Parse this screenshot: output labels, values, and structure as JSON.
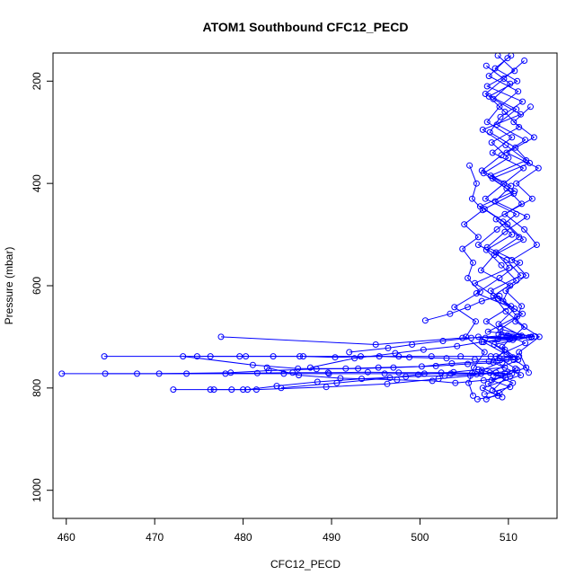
{
  "chart_data": {
    "type": "scatter",
    "title": "ATOM1 Southbound CFC12_PECD",
    "xlabel": "CFC12_PECD",
    "ylabel": "Pressure (mbar)",
    "xlim": [
      458.5,
      515.5
    ],
    "ylim": [
      1055,
      145
    ],
    "y_reversed": true,
    "x_ticks": [
      460,
      470,
      480,
      490,
      500,
      510
    ],
    "y_ticks": [
      200,
      400,
      600,
      800,
      1000
    ],
    "color": "#0000ff",
    "marker": "open-circle",
    "grid": false,
    "series": [
      {
        "points": [
          [
            510.3,
            150
          ],
          [
            508.5,
            175
          ],
          [
            511.0,
            200
          ],
          [
            507.8,
            230
          ],
          [
            509.6,
            260
          ],
          [
            511.2,
            290
          ],
          [
            508.1,
            320
          ],
          [
            510.0,
            350
          ],
          [
            507.2,
            380
          ],
          [
            509.8,
            410
          ],
          [
            511.5,
            440
          ],
          [
            508.6,
            470
          ],
          [
            510.4,
            500
          ],
          [
            507.5,
            530
          ],
          [
            509.2,
            560
          ],
          [
            510.9,
            590
          ],
          [
            508.3,
            620
          ],
          [
            509.7,
            650
          ],
          [
            511.8,
            680
          ],
          [
            510.6,
            700
          ],
          [
            508.9,
            695
          ],
          [
            512.3,
            701
          ],
          [
            507.4,
            702
          ],
          [
            510.1,
            705
          ],
          [
            509.3,
            720
          ],
          [
            511.1,
            745
          ],
          [
            507.9,
            770
          ],
          [
            510.5,
            790
          ],
          [
            509.0,
            810
          ],
          [
            507.5,
            822
          ]
        ]
      },
      {
        "points": [
          [
            508.8,
            150
          ],
          [
            510.7,
            180
          ],
          [
            507.6,
            210
          ],
          [
            511.6,
            240
          ],
          [
            509.1,
            270
          ],
          [
            507.9,
            300
          ],
          [
            510.8,
            330
          ],
          [
            512.4,
            360
          ],
          [
            508.2,
            390
          ],
          [
            510.6,
            420
          ],
          [
            507.3,
            450
          ],
          [
            509.9,
            480
          ],
          [
            511.7,
            510
          ],
          [
            508.4,
            540
          ],
          [
            506.9,
            570
          ],
          [
            510.2,
            600
          ],
          [
            509.4,
            630
          ],
          [
            511.0,
            660
          ],
          [
            507.7,
            690
          ],
          [
            513.0,
            699
          ],
          [
            510.7,
            702
          ],
          [
            506.6,
            700
          ],
          [
            509.6,
            725
          ],
          [
            508.3,
            750
          ],
          [
            511.4,
            775
          ],
          [
            507.1,
            800
          ],
          [
            508.8,
            815
          ],
          [
            506.5,
            822
          ]
        ]
      },
      {
        "points": [
          [
            511.8,
            160
          ],
          [
            509.5,
            195
          ],
          [
            507.4,
            225
          ],
          [
            510.9,
            255
          ],
          [
            508.7,
            285
          ],
          [
            511.9,
            315
          ],
          [
            509.2,
            345
          ],
          [
            507.0,
            375
          ],
          [
            510.3,
            405
          ],
          [
            508.5,
            435
          ],
          [
            512.1,
            465
          ],
          [
            509.6,
            495
          ],
          [
            507.6,
            525
          ],
          [
            511.3,
            555
          ],
          [
            509.0,
            585
          ],
          [
            506.4,
            615
          ],
          [
            510.7,
            645
          ],
          [
            508.9,
            675
          ],
          [
            511.5,
            698
          ],
          [
            507.2,
            710
          ],
          [
            509.8,
            735
          ],
          [
            512.0,
            760
          ],
          [
            508.1,
            785
          ],
          [
            510.2,
            798
          ],
          [
            507.3,
            812
          ]
        ]
      },
      {
        "points": [
          [
            507.5,
            170
          ],
          [
            510.2,
            205
          ],
          [
            508.3,
            235
          ],
          [
            511.4,
            265
          ],
          [
            507.1,
            295
          ],
          [
            509.7,
            325
          ],
          [
            512.0,
            355
          ],
          [
            508.0,
            385
          ],
          [
            510.7,
            415
          ],
          [
            506.8,
            445
          ],
          [
            509.4,
            475
          ],
          [
            511.2,
            505
          ],
          [
            508.6,
            535
          ],
          [
            510.1,
            565
          ],
          [
            506.2,
            595
          ],
          [
            508.8,
            625
          ],
          [
            511.6,
            655
          ],
          [
            509.1,
            685
          ],
          [
            512.6,
            700
          ],
          [
            508.4,
            715
          ],
          [
            510.5,
            740
          ],
          [
            507.0,
            765
          ],
          [
            509.7,
            780
          ],
          [
            508.2,
            805
          ]
        ]
      },
      {
        "points": [
          [
            509.9,
            155
          ],
          [
            507.8,
            190
          ],
          [
            511.1,
            220
          ],
          [
            509.0,
            250
          ],
          [
            507.6,
            280
          ],
          [
            510.4,
            310
          ],
          [
            508.2,
            340
          ],
          [
            511.7,
            370
          ],
          [
            509.5,
            400
          ],
          [
            507.4,
            430
          ],
          [
            510.9,
            460
          ],
          [
            508.7,
            490
          ],
          [
            506.6,
            520
          ],
          [
            509.8,
            550
          ],
          [
            511.4,
            580
          ],
          [
            508.0,
            610
          ],
          [
            510.3,
            640
          ],
          [
            507.5,
            670
          ],
          [
            509.9,
            697
          ],
          [
            511.9,
            712
          ],
          [
            508.6,
            738
          ],
          [
            510.8,
            762
          ],
          [
            507.7,
            792
          ],
          [
            509.3,
            818
          ]
        ]
      },
      {
        "points": [
          [
            512.5,
            250
          ],
          [
            510.6,
            280
          ],
          [
            512.9,
            310
          ],
          [
            509.8,
            340
          ],
          [
            513.4,
            370
          ],
          [
            510.9,
            400
          ],
          [
            512.7,
            430
          ],
          [
            509.6,
            460
          ],
          [
            511.8,
            490
          ],
          [
            513.2,
            520
          ],
          [
            510.4,
            550
          ],
          [
            512.0,
            580
          ],
          [
            509.7,
            610
          ],
          [
            511.5,
            640
          ],
          [
            510.8,
            670
          ],
          [
            513.5,
            700
          ],
          [
            511.2,
            730
          ],
          [
            512.3,
            770
          ]
        ]
      },
      {
        "points": [
          [
            505.6,
            365
          ],
          [
            506.4,
            400
          ],
          [
            505.9,
            430
          ],
          [
            507.1,
            452
          ],
          [
            505.0,
            480
          ],
          [
            506.6,
            505
          ],
          [
            504.8,
            528
          ],
          [
            506.0,
            555
          ],
          [
            505.4,
            585
          ],
          [
            506.8,
            612
          ],
          [
            503.9,
            642
          ],
          [
            506.3,
            670
          ],
          [
            505.2,
            700
          ],
          [
            507.3,
            730
          ],
          [
            506.1,
            760
          ],
          [
            505.5,
            790
          ],
          [
            506.0,
            815
          ]
        ]
      },
      {
        "points": [
          [
            477.5,
            700
          ],
          [
            495.0,
            715
          ],
          [
            504.8,
            702
          ],
          [
            510.1,
            700
          ],
          [
            508.8,
            705
          ],
          [
            512.6,
            701
          ]
        ]
      },
      {
        "points": [
          [
            464.3,
            738
          ],
          [
            476.3,
            738
          ],
          [
            480.3,
            738
          ],
          [
            486.4,
            738
          ],
          [
            493.3,
            738
          ],
          [
            497.6,
            738
          ],
          [
            501.3,
            738
          ],
          [
            504.6,
            738
          ],
          [
            508.0,
            738
          ],
          [
            511.2,
            738
          ],
          [
            509.0,
            742
          ]
        ]
      },
      {
        "points": [
          [
            459.5,
            772
          ],
          [
            468.0,
            772
          ],
          [
            478.0,
            772
          ],
          [
            484.6,
            772
          ],
          [
            489.7,
            772
          ],
          [
            496.0,
            772
          ],
          [
            500.5,
            772
          ],
          [
            503.5,
            772
          ],
          [
            506.9,
            772
          ],
          [
            510.4,
            772
          ],
          [
            508.3,
            776
          ]
        ]
      },
      {
        "points": [
          [
            472.1,
            803
          ],
          [
            476.7,
            803
          ],
          [
            478.7,
            803
          ],
          [
            480.0,
            803
          ],
          [
            481.5,
            803
          ],
          [
            489.4,
            798
          ],
          [
            496.3,
            792
          ],
          [
            502.1,
            782
          ],
          [
            505.7,
            776
          ],
          [
            508.6,
            770
          ],
          [
            511.0,
            765
          ]
        ]
      },
      {
        "points": [
          [
            473.2,
            738
          ],
          [
            481.1,
            755
          ],
          [
            486.2,
            762
          ],
          [
            491.6,
            762
          ],
          [
            495.3,
            760
          ],
          [
            500.2,
            758
          ],
          [
            503.6,
            752
          ],
          [
            507.8,
            748
          ],
          [
            510.6,
            745
          ]
        ]
      },
      {
        "points": [
          [
            470.5,
            772
          ],
          [
            478.6,
            770
          ],
          [
            482.9,
            766
          ],
          [
            488.3,
            763
          ],
          [
            493.0,
            762
          ],
          [
            497.0,
            760
          ],
          [
            501.8,
            757
          ],
          [
            505.4,
            753
          ],
          [
            509.3,
            750
          ]
        ]
      },
      {
        "points": [
          [
            482.7,
            760
          ],
          [
            486.3,
            775
          ],
          [
            491.0,
            781
          ],
          [
            497.4,
            784
          ],
          [
            501.4,
            786
          ],
          [
            504.0,
            790
          ],
          [
            507.2,
            785
          ],
          [
            510.2,
            778
          ]
        ]
      },
      {
        "points": [
          [
            484.3,
            800
          ],
          [
            490.6,
            790
          ],
          [
            496.6,
            780
          ],
          [
            499.8,
            774
          ],
          [
            503.8,
            769
          ],
          [
            506.6,
            764
          ],
          [
            509.6,
            760
          ]
        ]
      },
      {
        "points": [
          [
            487.6,
            760
          ],
          [
            492.6,
            742
          ],
          [
            497.2,
            732
          ],
          [
            500.4,
            725
          ],
          [
            504.2,
            718
          ],
          [
            507.0,
            710
          ],
          [
            510.5,
            706
          ]
        ]
      },
      {
        "points": [
          [
            492.0,
            730
          ],
          [
            496.4,
            722
          ],
          [
            499.1,
            715
          ],
          [
            502.6,
            708
          ],
          [
            505.8,
            702
          ],
          [
            509.2,
            698
          ]
        ]
      },
      {
        "points": [
          [
            500.6,
            668
          ],
          [
            503.4,
            655
          ],
          [
            505.4,
            642
          ],
          [
            507.0,
            630
          ],
          [
            509.0,
            620
          ]
        ]
      },
      {
        "points": [
          [
            474.8,
            738
          ],
          [
            479.6,
            738
          ],
          [
            483.4,
            738
          ],
          [
            486.8,
            738
          ],
          [
            490.4,
            740
          ],
          [
            495.4,
            738
          ],
          [
            498.8,
            740
          ],
          [
            503.0,
            742
          ],
          [
            506.2,
            744
          ],
          [
            509.8,
            744
          ]
        ]
      },
      {
        "points": [
          [
            464.4,
            772
          ],
          [
            473.6,
            772
          ],
          [
            481.6,
            771
          ],
          [
            485.6,
            770
          ],
          [
            489.6,
            770
          ],
          [
            494.1,
            769
          ],
          [
            497.6,
            770
          ],
          [
            502.4,
            770
          ],
          [
            505.9,
            771
          ],
          [
            509.6,
            771
          ]
        ]
      },
      {
        "points": [
          [
            476.3,
            803
          ],
          [
            480.5,
            803
          ],
          [
            483.8,
            796
          ],
          [
            488.4,
            788
          ],
          [
            493.4,
            782
          ],
          [
            498.4,
            778
          ],
          [
            502.8,
            776
          ],
          [
            506.4,
            773
          ]
        ]
      }
    ]
  }
}
